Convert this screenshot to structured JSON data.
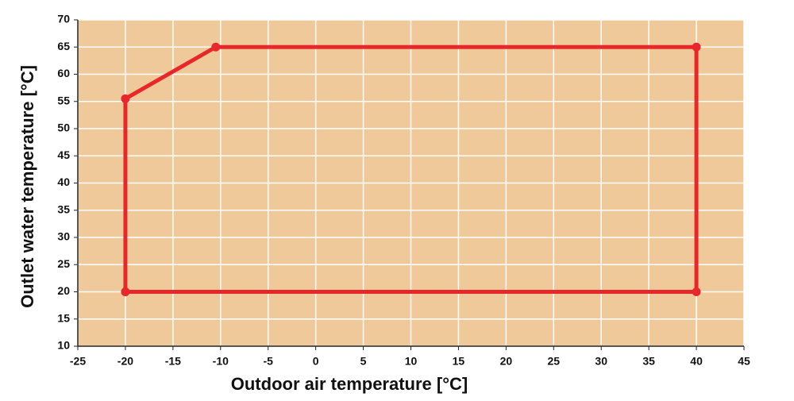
{
  "chart_data": {
    "type": "line",
    "x_label": "Outdoor air temperature  [°C]",
    "y_label": "Outlet water temperature  [°C]",
    "x": [
      -20,
      -20,
      -10.5,
      40,
      40,
      -20
    ],
    "series": [
      {
        "color": "#e8272a",
        "values": [
          20,
          55.5,
          65,
          65,
          20,
          20
        ]
      }
    ],
    "xlim": [
      -25,
      45
    ],
    "xticks": [
      -25,
      -20,
      -15,
      -10,
      -5,
      0,
      5,
      10,
      15,
      20,
      25,
      30,
      35,
      40,
      45
    ],
    "ylim": [
      10,
      70
    ],
    "yticks": [
      10,
      15,
      20,
      25,
      30,
      35,
      40,
      45,
      50,
      55,
      60,
      65,
      70
    ],
    "grid": true,
    "background": "#f0c99a"
  }
}
